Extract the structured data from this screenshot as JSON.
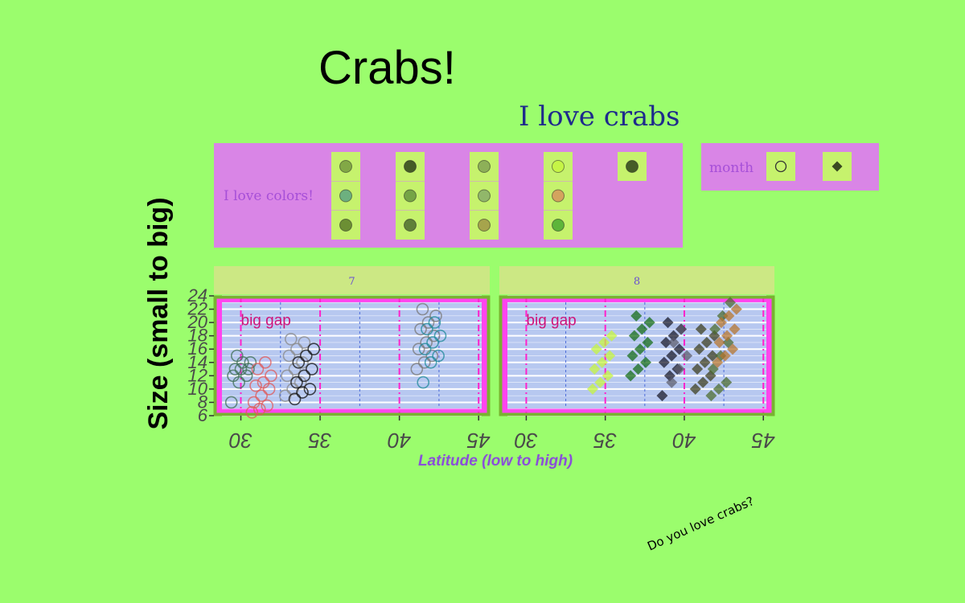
{
  "chart_data": {
    "type": "scatter",
    "title": "Crabs!",
    "subtitle": "I love crabs",
    "xlabel": "Latitude (low to high)",
    "ylabel": "Size (small to big)",
    "caption": "Do you love crabs?",
    "x_ticks": [
      30,
      35,
      40,
      45
    ],
    "y_ticks": [
      6,
      8,
      10,
      12,
      14,
      16,
      18,
      20,
      22,
      24
    ],
    "xlim": [
      28.3,
      45.7
    ],
    "ylim": [
      6,
      24
    ],
    "grid": true,
    "annotation": "big gap",
    "color_legend_title": "I love colors!",
    "shape_legend_title": "month",
    "color_legend_keys": [
      [
        "#6b8f3a",
        "#4f9a85",
        "#4e6d22"
      ],
      [
        "#1a2a10",
        "#5a8a3a",
        "#3c5a28"
      ],
      [
        "#7a9a52",
        "#7fa36a",
        "#9b8a42"
      ],
      [
        "#c6f53a",
        "#d88a5a",
        "#3aa02a"
      ],
      [
        "#1a2a10"
      ]
    ],
    "shape_legend_keys": [
      {
        "month": "7",
        "shape": "circle"
      },
      {
        "month": "8",
        "shape": "diamond"
      }
    ],
    "panels": [
      {
        "label": "7",
        "series": [
          {
            "color": "#3f6f55",
            "x": 30,
            "y": [
              8,
              11,
              12,
              12,
              13,
              13,
              13,
              14,
              14,
              15
            ]
          },
          {
            "color": "#e05a5a",
            "x": 31.3,
            "y": [
              6.5,
              7,
              7.5,
              8,
              9,
              10,
              10.5,
              11,
              12,
              13,
              14
            ]
          },
          {
            "color": "#8a8a8a",
            "x": 33.4,
            "y": [
              9,
              10,
              11,
              12,
              13,
              14,
              15,
              16,
              17,
              17.5
            ]
          },
          {
            "color": "#111111",
            "x": 34,
            "y": [
              8.5,
              9.5,
              10,
              11,
              12,
              13,
              14,
              15,
              16
            ]
          },
          {
            "color": "#777777",
            "x": 41.7,
            "y": [
              13,
              14,
              15,
              16,
              17,
              18,
              19,
              20,
              21,
              22
            ]
          },
          {
            "color": "#1f8a9a",
            "x": 42.1,
            "y": [
              11,
              14,
              15,
              16,
              17,
              18,
              19,
              20
            ]
          }
        ]
      },
      {
        "label": "8",
        "series": [
          {
            "color": "#c6f53a",
            "x": 34.8,
            "y": [
              10,
              11,
              12,
              13,
              14,
              15,
              16,
              17,
              18
            ]
          },
          {
            "color": "#106a10",
            "x": 37.2,
            "y": [
              12,
              13,
              14,
              15,
              16,
              17,
              18,
              19,
              20,
              21
            ]
          },
          {
            "color": "#151526",
            "x": 39.2,
            "y": [
              9,
              12,
              13,
              14,
              15,
              16,
              17,
              18,
              19,
              20
            ]
          },
          {
            "color": "#5a5a6a",
            "x": 39.8,
            "y": [
              11,
              13,
              15,
              17,
              19
            ]
          },
          {
            "color": "#3a3a1a",
            "x": 41.3,
            "y": [
              10,
              11,
              12,
              13,
              14,
              15,
              16,
              17,
              18,
              19
            ]
          },
          {
            "color": "#4a6a2a",
            "x": 42.3,
            "y": [
              9,
              10,
              11,
              13,
              15,
              17,
              19,
              21,
              23
            ]
          },
          {
            "color": "#b5732a",
            "x": 42.7,
            "y": [
              14,
              15,
              16,
              17,
              18,
              19,
              20,
              21,
              22
            ]
          }
        ]
      }
    ]
  }
}
